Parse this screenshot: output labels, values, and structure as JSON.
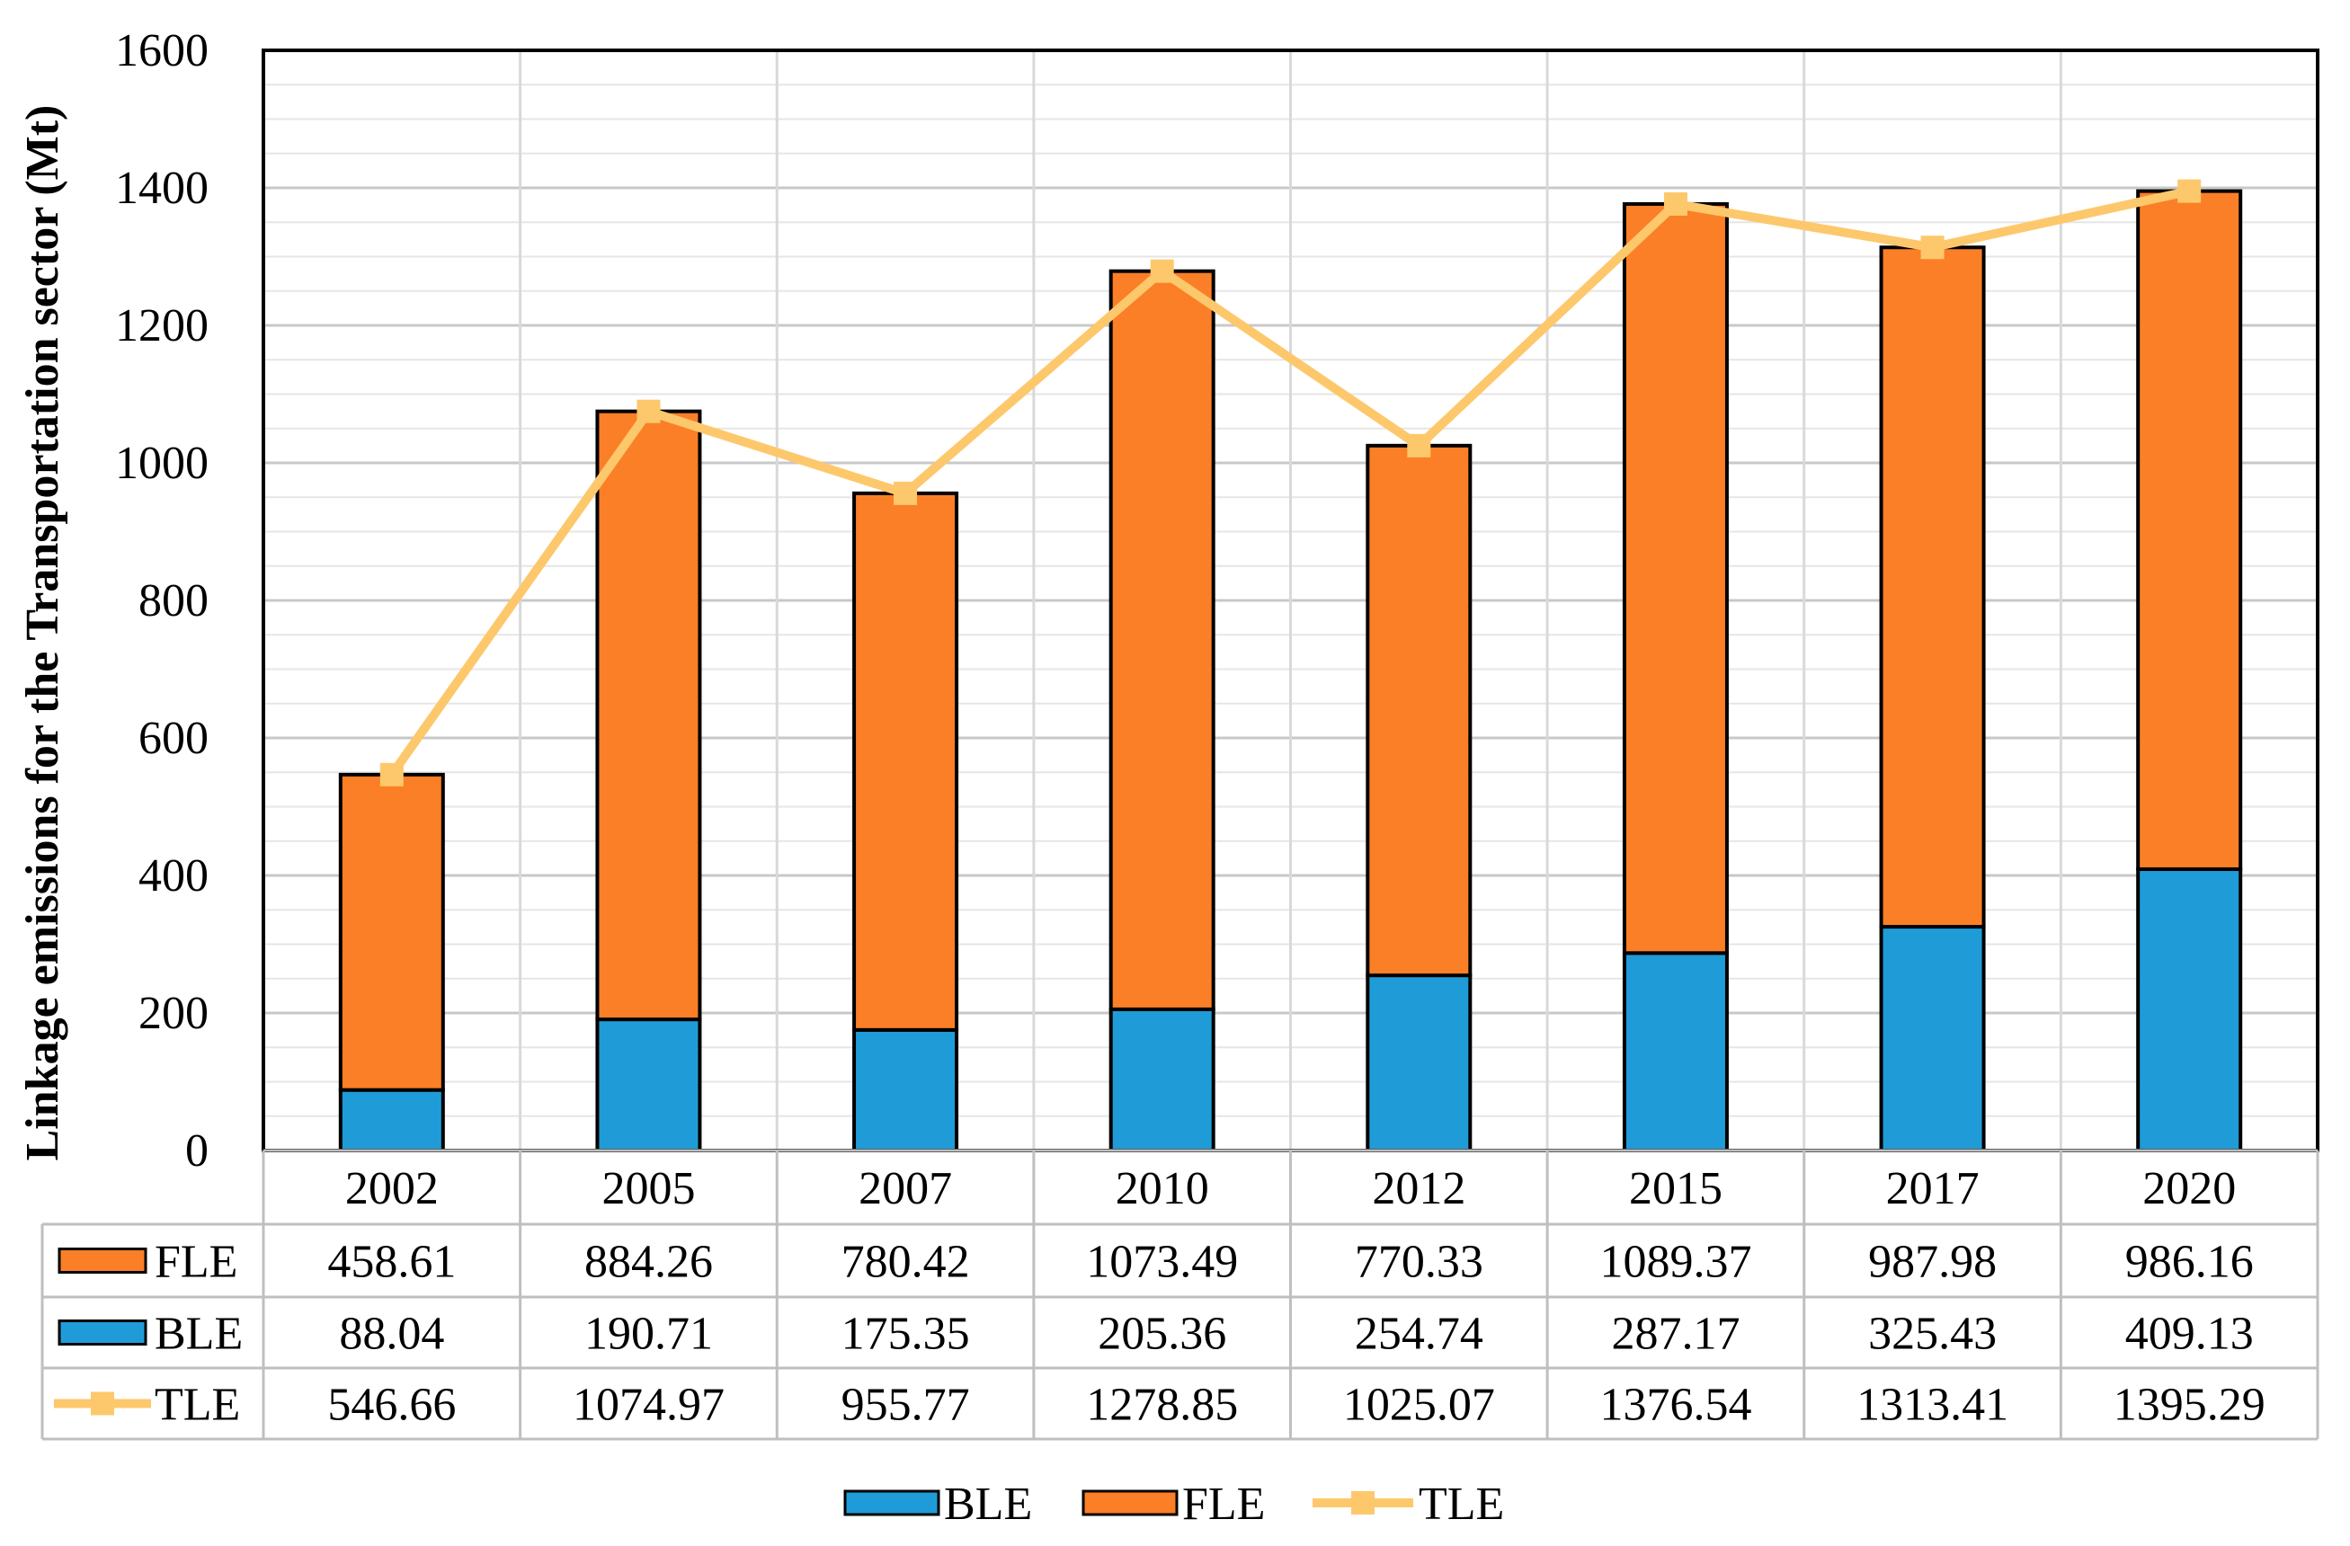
{
  "chart_data": {
    "type": "bar",
    "stacked": true,
    "title": "",
    "xlabel": "",
    "ylabel": "Linkage emissions for the Transportation sector (Mt)",
    "ylim": [
      0,
      1600
    ],
    "ytick_step": 200,
    "yticks": [
      "0",
      "200",
      "400",
      "600",
      "800",
      "1000",
      "1200",
      "1400",
      "1600"
    ],
    "grid": true,
    "legend_position": "bottom",
    "categories": [
      "2002",
      "2005",
      "2007",
      "2010",
      "2012",
      "2015",
      "2017",
      "2020"
    ],
    "series": [
      {
        "name": "FLE",
        "type": "bar",
        "color": "#FB7F26",
        "values": [
          458.61,
          884.26,
          780.42,
          1073.49,
          770.33,
          1089.37,
          987.98,
          986.16
        ],
        "labels": [
          "458.61",
          "884.26",
          "780.42",
          "1073.49",
          "770.33",
          "1089.37",
          "987.98",
          "986.16"
        ]
      },
      {
        "name": "BLE",
        "type": "bar",
        "color": "#1F9CD8",
        "values": [
          88.04,
          190.71,
          175.35,
          205.36,
          254.74,
          287.17,
          325.43,
          409.13
        ],
        "labels": [
          "88.04",
          "190.71",
          "175.35",
          "205.36",
          "254.74",
          "287.17",
          "325.43",
          "409.13"
        ]
      },
      {
        "name": "TLE",
        "type": "line",
        "color": "#FDC86C",
        "values": [
          546.66,
          1074.97,
          955.77,
          1278.85,
          1025.07,
          1376.54,
          1313.41,
          1395.29
        ],
        "labels": [
          "546.66",
          "1074.97",
          "955.77",
          "1278.85",
          "1025.07",
          "1376.54",
          "1313.41",
          "1395.29"
        ]
      }
    ],
    "legend": [
      "BLE",
      "FLE",
      "TLE"
    ]
  }
}
